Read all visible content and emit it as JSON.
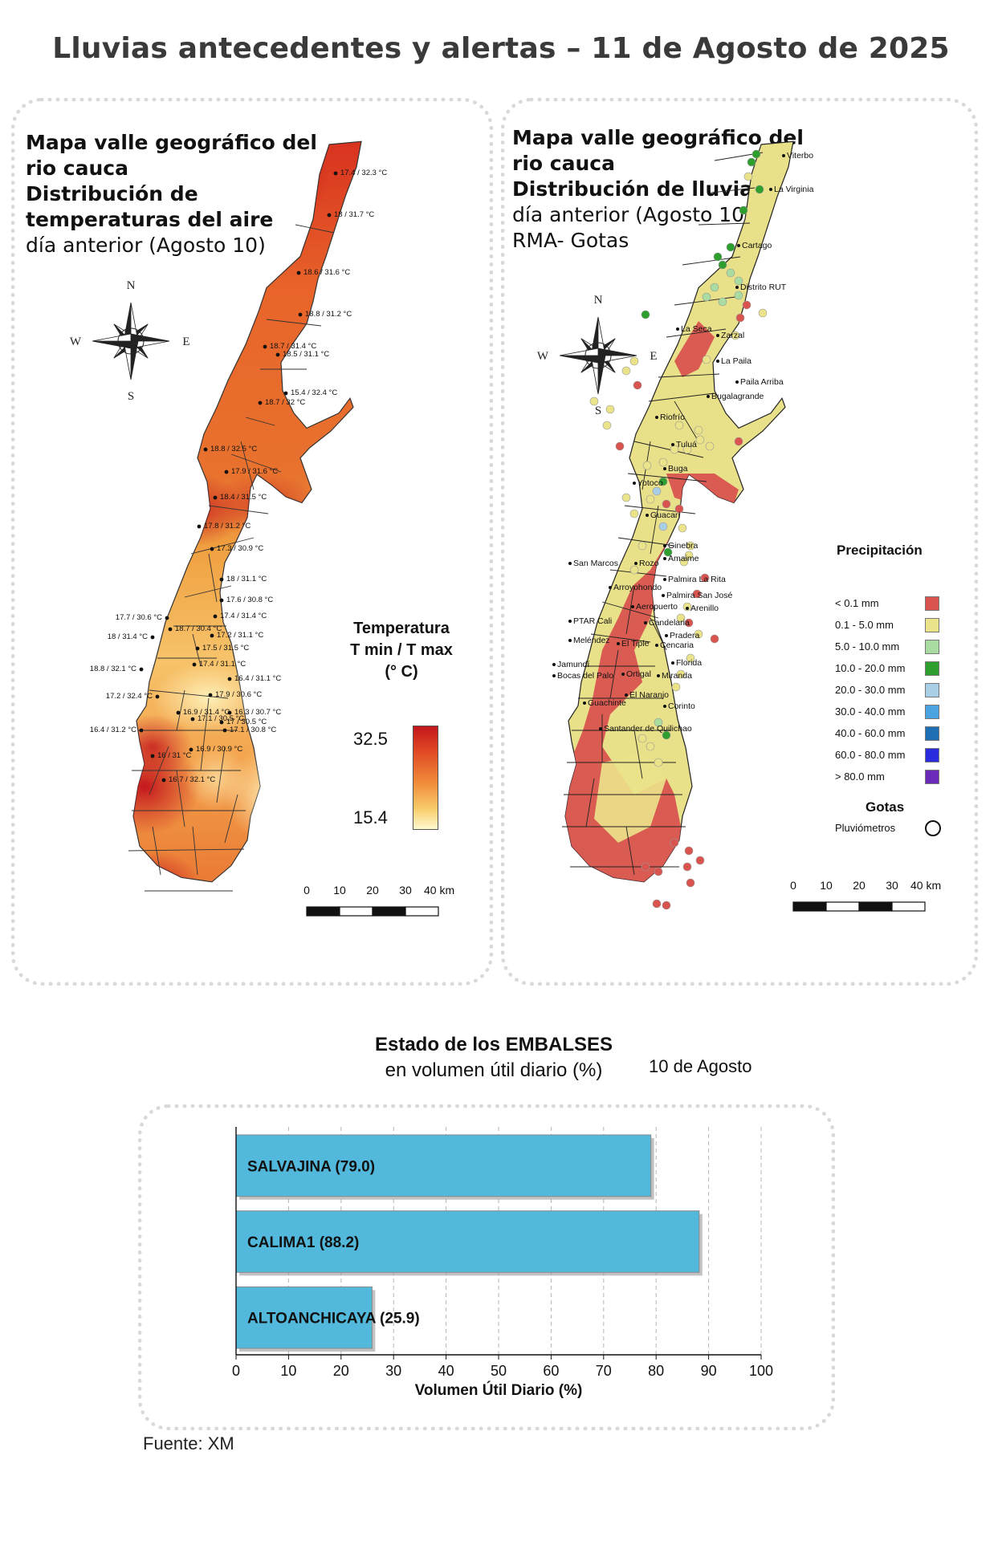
{
  "page_title": "Lluvias antecedentes y alertas – 11 de Agosto de 2025",
  "temp_map": {
    "title_lines": [
      {
        "text": "Mapa valle geográfico del",
        "bold": true
      },
      {
        "text": "rio cauca",
        "bold": true
      },
      {
        "text": "Distribución de",
        "bold": true
      },
      {
        "text": "temperaturas del aire",
        "bold": true
      },
      {
        "text": "día anterior (Agosto 10)",
        "bold": false
      }
    ],
    "compass": {
      "n": "N",
      "s": "S",
      "e": "E",
      "w": "W"
    },
    "legend_title_lines": [
      "Temperatura",
      "T min / T max",
      "(° C)"
    ],
    "legend_max": "32.5",
    "legend_min": "15.4",
    "scale_labels": [
      "0",
      "10",
      "20",
      "30",
      "40 km"
    ],
    "station_labels": [
      "17.4 / 32.3 °C",
      "18 / 31.7 °C",
      "18.6 / 31.6 °C",
      "18.8 / 31.2 °C",
      "18.7 / 31.4 °C",
      "18.5 / 31.1 °C",
      "15.4 / 32.4 °C",
      "18.7 / 32 °C",
      "18.8 / 32.5 °C",
      "17.9 / 31.6 °C",
      "18.4 / 31.5 °C",
      "17.8 / 31.2 °C",
      "17.3 / 30.9 °C",
      "18 / 31.1 °C",
      "17.6 / 30.8 °C",
      "17.7 / 30.6 °C",
      "18.7 / 30.4 °C",
      "17.4 / 31.4 °C",
      "18 / 31.4 °C",
      "17.2 / 31.1 °C",
      "17.5 / 31.5 °C",
      "18.8 / 32.1 °C",
      "17.4 / 31.1 °C",
      "16.4 / 31.1 °C",
      "17.2 / 32.4 °C",
      "17.9 / 30.6 °C",
      "16.9 / 31.4 °C",
      "16.3 / 30.7 °C",
      "17.1 / 30.5 °C",
      "17 / 30.5 °C",
      "16.4 / 31.2 °C",
      "17.1 / 30.8 °C",
      "16.9 / 30.9 °C",
      "16 / 31 °C",
      "16.7 / 32.1 °C"
    ]
  },
  "rain_map": {
    "title_lines": [
      {
        "text": "Mapa valle geográfico del",
        "bold": true
      },
      {
        "text": "rio cauca",
        "bold": true
      },
      {
        "text": "Distribución de lluvias",
        "bold": true
      },
      {
        "text": "día anterior (Agosto 10)",
        "bold": false
      },
      {
        "text": "RMA- Gotas",
        "bold": false
      }
    ],
    "compass": {
      "n": "N",
      "s": "S",
      "e": "E",
      "w": "W"
    },
    "legend_title": "Precipitación",
    "legend_items": [
      {
        "label": "< 0.1 mm",
        "color": "#d9534f"
      },
      {
        "label": "0.1 - 5.0 mm",
        "color": "#ebe38a"
      },
      {
        "label": "5.0 - 10.0 mm",
        "color": "#a8dca0"
      },
      {
        "label": "10.0 - 20.0 mm",
        "color": "#2e9e2e"
      },
      {
        "label": "20.0 - 30.0 mm",
        "color": "#a9cfe6"
      },
      {
        "label": "30.0 - 40.0 mm",
        "color": "#4da3e0"
      },
      {
        "label": "40.0 - 60.0 mm",
        "color": "#1f6fb5"
      },
      {
        "label": "60.0 - 80.0 mm",
        "color": "#2b2be0"
      },
      {
        "label": "> 80.0 mm",
        "color": "#6a2bb8"
      }
    ],
    "gotas_title": "Gotas",
    "gotas_item": "Pluviómetros",
    "scale_labels": [
      "0",
      "10",
      "20",
      "30",
      "40 km"
    ],
    "place_names": [
      "Viterbo",
      "La Virginia",
      "Cartago",
      "Distrito RUT",
      "La Seca",
      "Zarzal",
      "La Paila",
      "Paila Arriba",
      "Bugalagrande",
      "Riofrío",
      "Tuluá",
      "Buga",
      "Yotoco",
      "Guacarí",
      "Ginebra",
      "San Marcos",
      "Rozo",
      "Amaime",
      "Palmira La Rita",
      "Arroyohondo",
      "Palmira San José",
      "Aeropuerto",
      "Arenillo",
      "PTAR Cali",
      "Candelaria",
      "Pradera",
      "Meléndez",
      "El Tiple",
      "Cencaria",
      "Jamundí",
      "Florida",
      "Bocas del Palo",
      "Ortigal",
      "Miranda",
      "El Naranjo",
      "Guachinte",
      "Corinto",
      "Santander de Quilichao"
    ]
  },
  "reservoirs": {
    "title": "Estado de los EMBALSES",
    "subtitle": "en volumen útil diario (%)",
    "date": "10 de Agosto",
    "source": "Fuente: XM"
  },
  "chart_data": {
    "type": "bar",
    "orientation": "horizontal",
    "title": "Estado de los EMBALSES",
    "subtitle": "en volumen útil diario (%)",
    "categories": [
      "SALVAJINA (79.0)",
      "CALIMA1 (88.2)",
      "ALTOANCHICAYA (25.9)"
    ],
    "values": [
      79.0,
      88.2,
      25.9
    ],
    "xlabel": "Volumen Útil Diario (%)",
    "ylabel": "",
    "xlim": [
      0,
      100
    ],
    "xticks": [
      "0",
      "10",
      "20",
      "30",
      "40",
      "50",
      "60",
      "70",
      "80",
      "90",
      "100"
    ],
    "bar_color": "#53b9dc",
    "grid": "vertical dashed"
  }
}
